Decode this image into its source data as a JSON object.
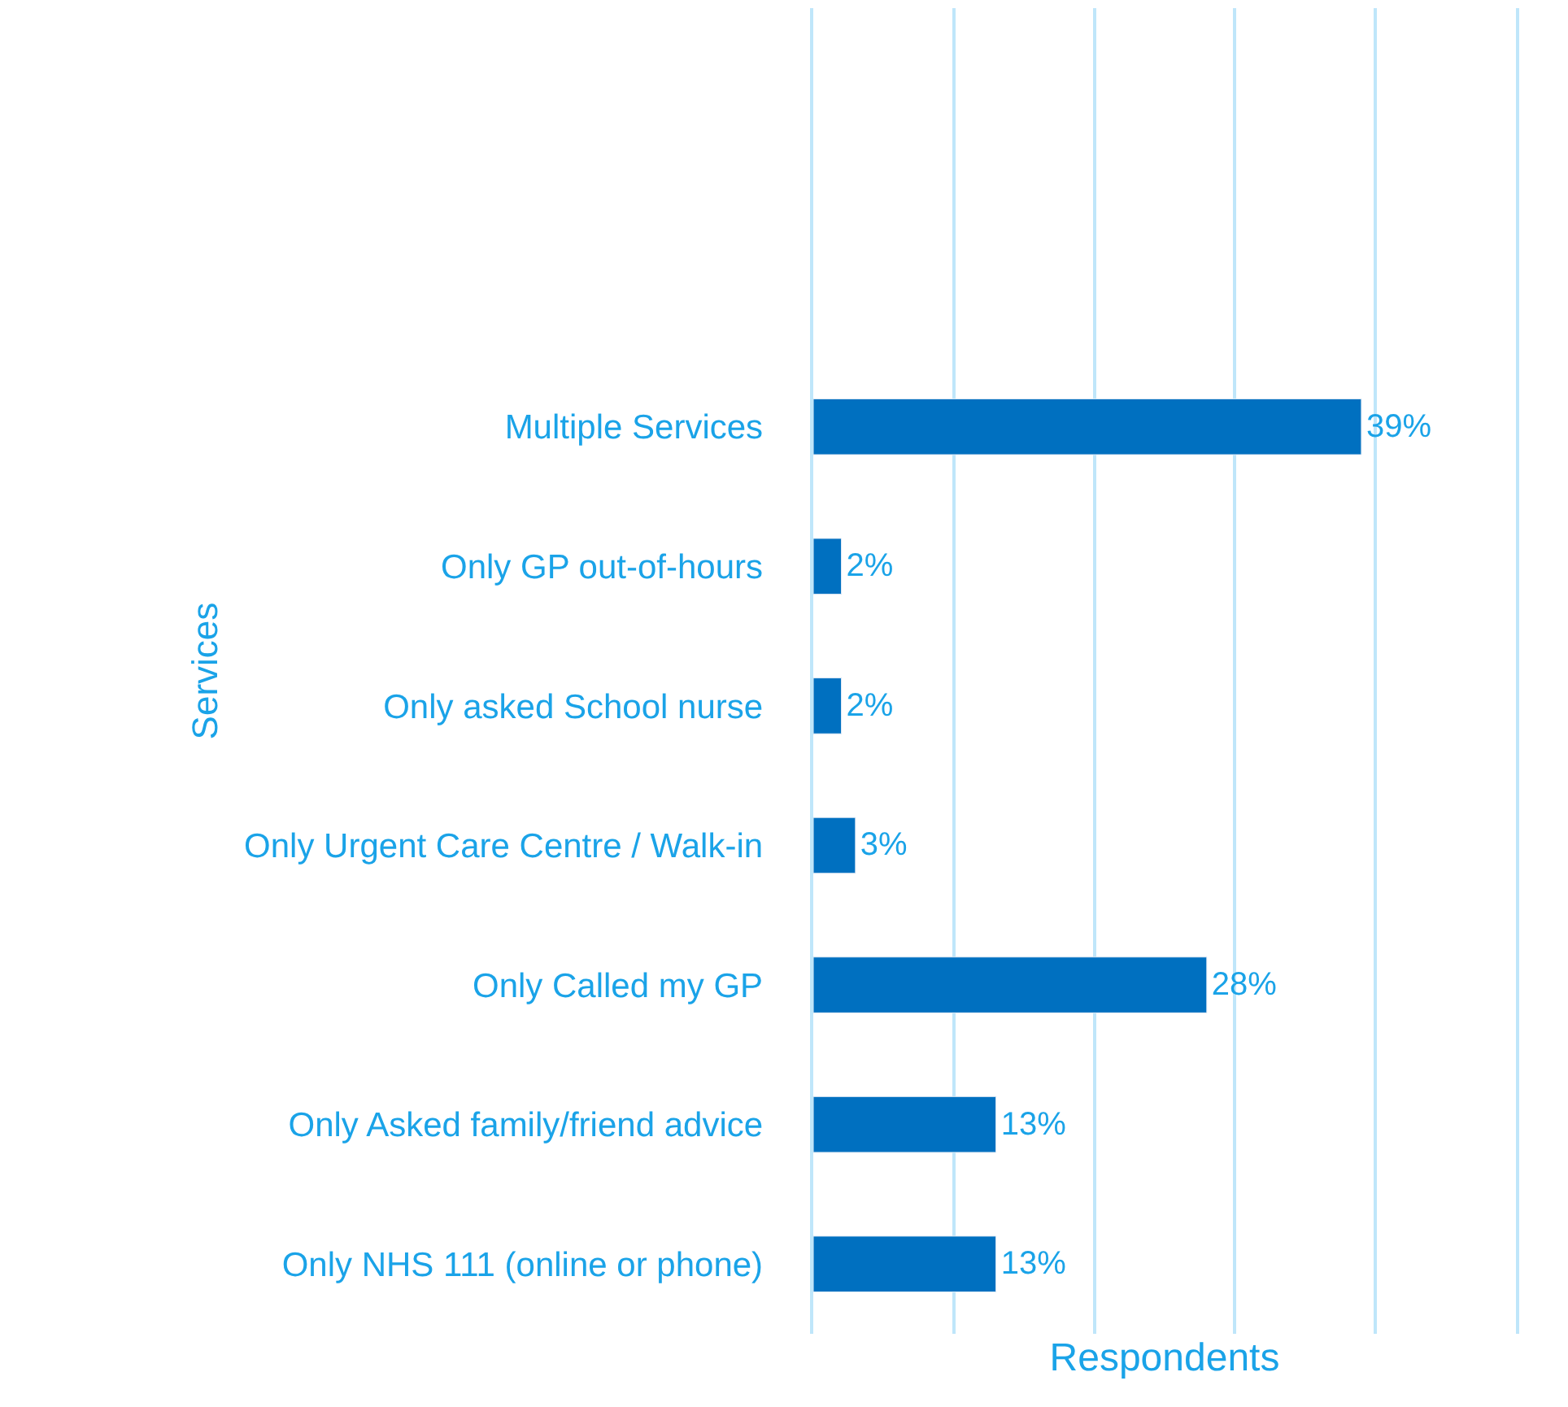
{
  "chart_data": {
    "type": "bar",
    "orientation": "horizontal",
    "xlabel": "Respondents",
    "ylabel": "Services",
    "categories": [
      "Multiple Services",
      "Only GP out-of-hours",
      "Only asked School nurse",
      "Only Urgent Care Centre / Walk-in",
      "Only Called my GP",
      "Only Asked family/friend advice",
      "Only NHS 111 (online or phone)"
    ],
    "values": [
      39,
      2,
      2,
      3,
      28,
      13,
      13
    ],
    "value_labels": [
      "39%",
      "2%",
      "2%",
      "3%",
      "28%",
      "13%",
      "13%"
    ],
    "color": "#0070c0",
    "xlim": [
      0,
      50
    ],
    "xticks": [
      {
        "value": 10,
        "label": null
      },
      {
        "value": 20,
        "label": null
      },
      {
        "value": 30,
        "label": null
      },
      {
        "value": 40,
        "label": null
      }
    ],
    "grid": "x",
    "tick_labels": "y"
  }
}
